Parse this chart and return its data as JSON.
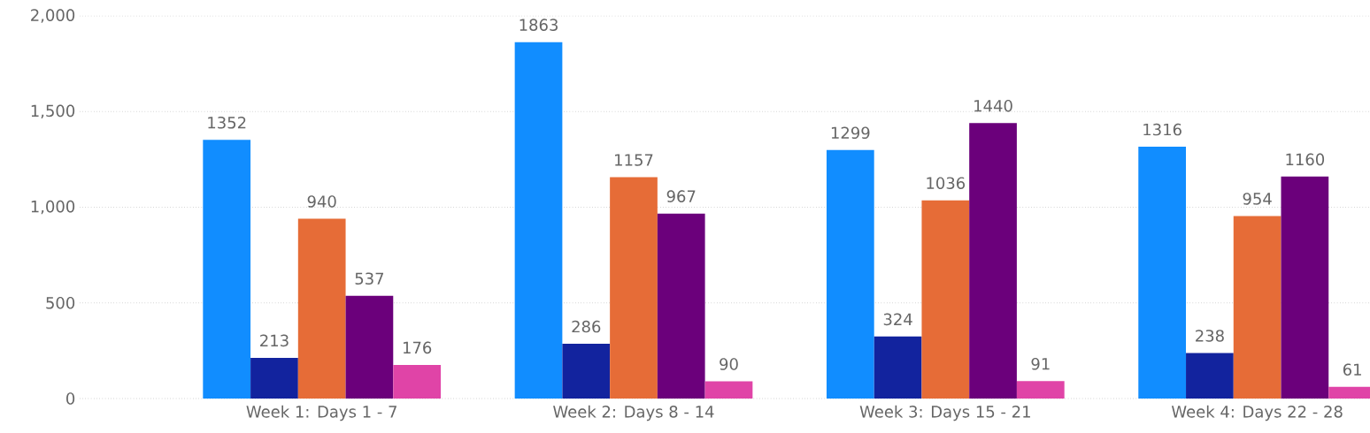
{
  "chart_data": {
    "type": "bar",
    "categories": [
      "Week 1: Days 1 - 7",
      "Week 2: Days 8 - 14",
      "Week 3: Days 15 - 21",
      "Week 4: Days 22 - 28"
    ],
    "series": [
      {
        "color": "#118dff",
        "values": [
          1352,
          1863,
          1299,
          1316
        ]
      },
      {
        "color": "#12239e",
        "values": [
          213,
          286,
          324,
          238
        ]
      },
      {
        "color": "#e66c37",
        "values": [
          940,
          1157,
          1036,
          954
        ]
      },
      {
        "color": "#6b007b",
        "values": [
          537,
          967,
          1440,
          1160
        ]
      },
      {
        "color": "#e044a7",
        "values": [
          176,
          90,
          91,
          61
        ]
      }
    ],
    "ylim": [
      0,
      2000
    ],
    "yticks": [
      0,
      500,
      {
        "value": 1000,
        "label": "1,000"
      },
      {
        "value": 1500,
        "label": "1,500"
      },
      {
        "value": 2000,
        "label": "2,000"
      }
    ],
    "grid": "y",
    "data_labels": true
  }
}
